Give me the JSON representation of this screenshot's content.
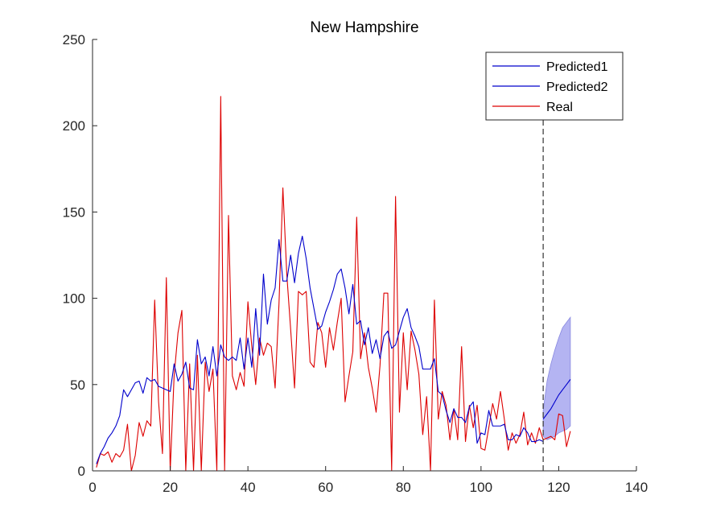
{
  "chart_data": {
    "type": "line",
    "title": "New Hampshire",
    "xlabel": "",
    "ylabel": "",
    "xlim": [
      0,
      140
    ],
    "ylim": [
      0,
      250
    ],
    "xticks": [
      0,
      20,
      40,
      60,
      80,
      100,
      120,
      140
    ],
    "yticks": [
      0,
      50,
      100,
      150,
      200,
      250
    ],
    "grid": false,
    "legend_position": "top-right",
    "colors": {
      "predicted": "#0000cc",
      "real": "#dd0000",
      "band": "#b4b4f2",
      "divider": "#333333"
    },
    "divider_x": 116,
    "series": [
      {
        "name": "Predicted1",
        "x": [
          1,
          2,
          3,
          4,
          5,
          6,
          7,
          8,
          9,
          10,
          11,
          12,
          13,
          14,
          15,
          16,
          17,
          18,
          19,
          20,
          21,
          22,
          23,
          24,
          25,
          26,
          27,
          28,
          29,
          30,
          31,
          32,
          33,
          34,
          35,
          36,
          37,
          38,
          39,
          40,
          41,
          42,
          43,
          44,
          45,
          46,
          47,
          48,
          49,
          50,
          51,
          52,
          53,
          54,
          55,
          56,
          57,
          58,
          59,
          60,
          61,
          62,
          63,
          64,
          65,
          66,
          67,
          68,
          69,
          70,
          71,
          72,
          73,
          74,
          75,
          76,
          77,
          78,
          79,
          80,
          81,
          82,
          83,
          84,
          85,
          86,
          87,
          88,
          89,
          90,
          91,
          92,
          93,
          94,
          95,
          96,
          97,
          98,
          99,
          100,
          101,
          102,
          103,
          104,
          105,
          106,
          107,
          108,
          109,
          110,
          111,
          112,
          113,
          114,
          115,
          116
        ],
        "values": [
          4,
          10,
          14,
          19,
          22,
          26,
          32,
          47,
          43,
          47,
          51,
          52,
          45,
          54,
          52,
          53,
          49,
          48,
          47,
          46,
          62,
          52,
          56,
          63,
          48,
          47,
          76,
          62,
          66,
          55,
          72,
          55,
          73,
          66,
          64,
          66,
          64,
          77,
          59,
          77,
          60,
          94,
          67,
          114,
          85,
          99,
          106,
          134,
          110,
          110,
          125,
          109,
          126,
          136,
          123,
          106,
          94,
          82,
          84,
          92,
          98,
          105,
          114,
          117,
          106,
          91,
          108,
          85,
          87,
          73,
          83,
          68,
          76,
          65,
          78,
          81,
          71,
          73,
          81,
          89,
          94,
          83,
          78,
          72,
          59,
          59,
          59,
          65,
          46,
          44,
          35,
          28,
          36,
          31,
          31,
          28,
          37,
          40,
          16,
          22,
          21,
          35,
          26,
          26,
          26,
          27,
          18,
          18,
          21,
          20,
          25,
          22,
          17,
          17,
          18,
          17
        ]
      },
      {
        "name": "Predicted2",
        "x": [
          116,
          117,
          118,
          119,
          120,
          121,
          122,
          123
        ],
        "values": [
          30,
          33,
          36,
          40,
          44,
          47,
          50,
          53
        ],
        "upper": [
          35,
          52,
          62,
          70,
          77,
          83,
          86,
          89
        ],
        "lower": [
          20,
          18,
          19,
          20,
          22,
          23,
          24,
          26
        ]
      },
      {
        "name": "Real",
        "x": [
          1,
          2,
          3,
          4,
          5,
          6,
          7,
          8,
          9,
          10,
          11,
          12,
          13,
          14,
          15,
          16,
          17,
          18,
          19,
          20,
          21,
          22,
          23,
          24,
          25,
          26,
          27,
          28,
          29,
          30,
          31,
          32,
          33,
          34,
          35,
          36,
          37,
          38,
          39,
          40,
          41,
          42,
          43,
          44,
          45,
          46,
          47,
          48,
          49,
          50,
          51,
          52,
          53,
          54,
          55,
          56,
          57,
          58,
          59,
          60,
          61,
          62,
          63,
          64,
          65,
          66,
          67,
          68,
          69,
          70,
          71,
          72,
          73,
          74,
          75,
          76,
          77,
          78,
          79,
          80,
          81,
          82,
          83,
          84,
          85,
          86,
          87,
          88,
          89,
          90,
          91,
          92,
          93,
          94,
          95,
          96,
          97,
          98,
          99,
          100,
          101,
          102,
          103,
          104,
          105,
          106,
          107,
          108,
          109,
          110,
          111,
          112,
          113,
          114,
          115,
          116,
          117,
          118,
          119,
          120,
          121,
          122,
          123
        ],
        "values": [
          2,
          10,
          9,
          11,
          5,
          10,
          8,
          12,
          27,
          0,
          9,
          28,
          20,
          29,
          26,
          99,
          40,
          10,
          112,
          0,
          55,
          80,
          93,
          0,
          62,
          0,
          67,
          0,
          63,
          46,
          59,
          0,
          217,
          0,
          148,
          55,
          47,
          57,
          49,
          98,
          72,
          50,
          77,
          67,
          74,
          72,
          48,
          97,
          164,
          114,
          82,
          48,
          104,
          102,
          104,
          63,
          60,
          86,
          80,
          60,
          83,
          70,
          86,
          100,
          40,
          55,
          69,
          147,
          65,
          80,
          60,
          48,
          34,
          61,
          103,
          103,
          0,
          159,
          34,
          80,
          47,
          81,
          70,
          56,
          21,
          43,
          0,
          99,
          30,
          46,
          38,
          18,
          36,
          18,
          72,
          17,
          38,
          25,
          38,
          13,
          12,
          25,
          39,
          30,
          46,
          30,
          12,
          22,
          16,
          21,
          34,
          15,
          22,
          16,
          25,
          18,
          19,
          20,
          18,
          33,
          32,
          14,
          23
        ]
      }
    ]
  }
}
